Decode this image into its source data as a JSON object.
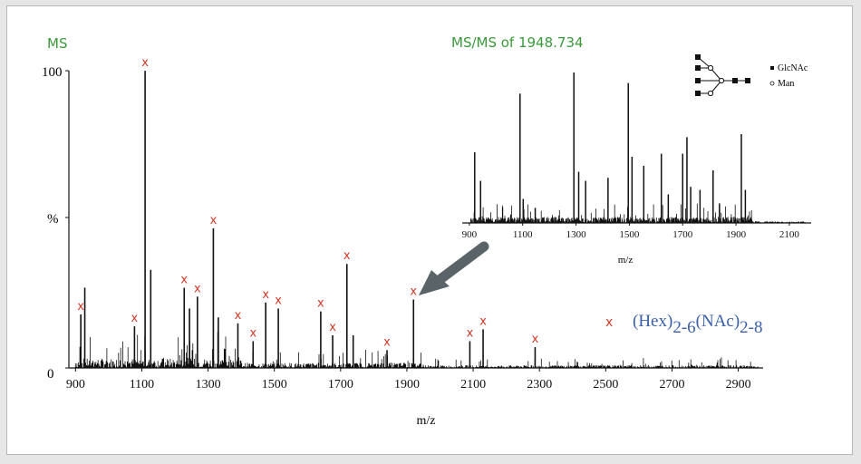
{
  "colors": {
    "axis": "#111111",
    "peak": "#111111",
    "marker": "#d03a2a",
    "title_green": "#3a9a3a",
    "legend_blue": "#3a5fa8",
    "arrow": "#5a6468"
  },
  "chart_data": [
    {
      "type": "line",
      "title": "MS",
      "xlabel": "m/z",
      "ylabel": "%",
      "xlim": [
        880,
        2975
      ],
      "ylim": [
        0,
        100
      ],
      "x_ticks": [
        900,
        1100,
        1300,
        1500,
        1700,
        1900,
        2100,
        2300,
        2500,
        2700,
        2900
      ],
      "y_tick_labels": [
        "100",
        "%",
        "0"
      ],
      "major_peaks": [
        {
          "mz": 916,
          "intensity": 18
        },
        {
          "mz": 928,
          "intensity": 27
        },
        {
          "mz": 1078,
          "intensity": 14
        },
        {
          "mz": 1110,
          "intensity": 100
        },
        {
          "mz": 1127,
          "intensity": 33
        },
        {
          "mz": 1228,
          "intensity": 27
        },
        {
          "mz": 1244,
          "intensity": 20
        },
        {
          "mz": 1268,
          "intensity": 24
        },
        {
          "mz": 1316,
          "intensity": 47
        },
        {
          "mz": 1331,
          "intensity": 17
        },
        {
          "mz": 1390,
          "intensity": 15
        },
        {
          "mz": 1436,
          "intensity": 9
        },
        {
          "mz": 1474,
          "intensity": 22
        },
        {
          "mz": 1512,
          "intensity": 20
        },
        {
          "mz": 1640,
          "intensity": 19
        },
        {
          "mz": 1676,
          "intensity": 11
        },
        {
          "mz": 1719,
          "intensity": 35
        },
        {
          "mz": 1738,
          "intensity": 11
        },
        {
          "mz": 1840,
          "intensity": 6
        },
        {
          "mz": 1920,
          "intensity": 23
        },
        {
          "mz": 2090,
          "intensity": 9
        },
        {
          "mz": 2130,
          "intensity": 13
        },
        {
          "mz": 2287,
          "intensity": 7
        }
      ],
      "marked_peaks_mz": [
        916,
        1078,
        1110,
        1228,
        1268,
        1316,
        1390,
        1436,
        1474,
        1512,
        1640,
        1676,
        1719,
        1840,
        1920,
        2090,
        2130,
        2287
      ],
      "legend": {
        "marker": "x",
        "label_hex": "(Hex)",
        "sub_hex": "2-6",
        "label_nac": "(NAc)",
        "sub_nac": "2-8"
      }
    },
    {
      "type": "line",
      "title": "MS/MS of 1948.734",
      "xlabel": "m/z",
      "xlim": [
        880,
        2175
      ],
      "x_ticks": [
        900,
        1100,
        1300,
        1500,
        1700,
        1900,
        2100
      ],
      "major_peaks": [
        {
          "mz": 920,
          "intensity": 47
        },
        {
          "mz": 942,
          "intensity": 28
        },
        {
          "mz": 1090,
          "intensity": 86
        },
        {
          "mz": 1102,
          "intensity": 16
        },
        {
          "mz": 1147,
          "intensity": 10
        },
        {
          "mz": 1292,
          "intensity": 100
        },
        {
          "mz": 1310,
          "intensity": 34
        },
        {
          "mz": 1336,
          "intensity": 28
        },
        {
          "mz": 1420,
          "intensity": 30
        },
        {
          "mz": 1496,
          "intensity": 93
        },
        {
          "mz": 1510,
          "intensity": 44
        },
        {
          "mz": 1554,
          "intensity": 38
        },
        {
          "mz": 1620,
          "intensity": 46
        },
        {
          "mz": 1646,
          "intensity": 19
        },
        {
          "mz": 1700,
          "intensity": 46
        },
        {
          "mz": 1716,
          "intensity": 57
        },
        {
          "mz": 1730,
          "intensity": 24
        },
        {
          "mz": 1765,
          "intensity": 22
        },
        {
          "mz": 1814,
          "intensity": 35
        },
        {
          "mz": 1838,
          "intensity": 13
        },
        {
          "mz": 1920,
          "intensity": 59
        },
        {
          "mz": 1935,
          "intensity": 22
        }
      ]
    }
  ],
  "glycan_legend": {
    "items": [
      {
        "symbol": "filled-square",
        "label": "GlcNAc"
      },
      {
        "symbol": "open-circle",
        "label": "Man"
      }
    ]
  }
}
